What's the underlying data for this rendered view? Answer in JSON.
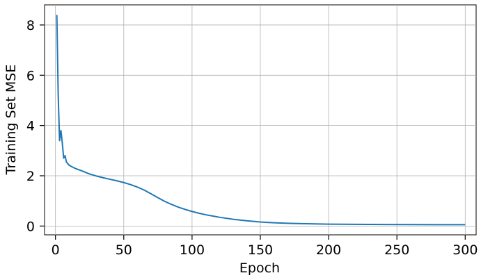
{
  "chart_data": {
    "type": "line",
    "title": "",
    "xlabel": "Epoch",
    "ylabel": "Training Set MSE",
    "xlim": [
      -8,
      308
    ],
    "ylim": [
      -0.35,
      8.8
    ],
    "xticks": [
      0,
      50,
      100,
      150,
      200,
      250,
      300
    ],
    "yticks": [
      0,
      2,
      4,
      6,
      8
    ],
    "grid": true,
    "line_color": "#1f77b4",
    "series": [
      {
        "name": "Training Set MSE",
        "x": [
          1,
          2,
          3,
          4,
          5,
          6,
          7,
          8,
          10,
          12,
          15,
          20,
          25,
          30,
          35,
          40,
          45,
          50,
          55,
          60,
          65,
          70,
          75,
          80,
          85,
          90,
          95,
          100,
          105,
          110,
          115,
          120,
          130,
          140,
          150,
          160,
          170,
          180,
          190,
          200,
          220,
          240,
          260,
          280,
          300
        ],
        "values": [
          8.4,
          5.2,
          3.4,
          3.8,
          3.3,
          2.7,
          2.8,
          2.55,
          2.42,
          2.36,
          2.28,
          2.18,
          2.07,
          1.99,
          1.92,
          1.86,
          1.8,
          1.73,
          1.65,
          1.55,
          1.43,
          1.28,
          1.13,
          0.98,
          0.86,
          0.75,
          0.66,
          0.58,
          0.51,
          0.45,
          0.4,
          0.35,
          0.27,
          0.21,
          0.16,
          0.13,
          0.11,
          0.095,
          0.085,
          0.075,
          0.068,
          0.062,
          0.058,
          0.055,
          0.053
        ]
      }
    ]
  }
}
